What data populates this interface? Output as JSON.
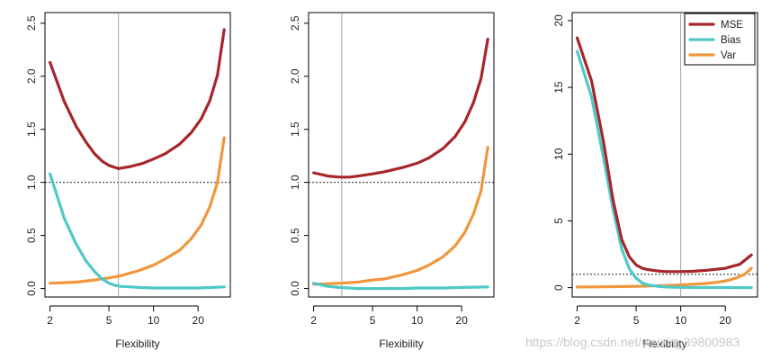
{
  "colors": {
    "mse": "#A6262B",
    "bias": "#4FC8C8",
    "var": "#F0963C",
    "reference": "#000000",
    "optimal": "#9a9a9a",
    "frame": "#000000"
  },
  "watermark": "https://blog.csdn.net/weixin_39800983",
  "chart_data": [
    {
      "type": "line",
      "xlabel": "Flexibility",
      "xscale": "log",
      "xlim": [
        1.85,
        33
      ],
      "xticks": [
        2,
        5,
        10,
        20
      ],
      "ylim": [
        -0.08,
        2.6
      ],
      "yticks": [
        0.0,
        0.5,
        1.0,
        1.5,
        2.0,
        2.5
      ],
      "ytick_labels": [
        "0.0",
        "0.5",
        "1.0",
        "1.5",
        "2.0",
        "2.5"
      ],
      "hline": 1.0,
      "vline": 5.8,
      "series": [
        {
          "key": "mse",
          "x": [
            2,
            2.5,
            3,
            3.5,
            4,
            4.5,
            5,
            5.8,
            7,
            8.5,
            10,
            12,
            15,
            18,
            21,
            24,
            27,
            30
          ],
          "y": [
            2.13,
            1.76,
            1.53,
            1.38,
            1.27,
            1.2,
            1.16,
            1.13,
            1.15,
            1.18,
            1.22,
            1.27,
            1.36,
            1.47,
            1.6,
            1.77,
            2.01,
            2.44
          ]
        },
        {
          "key": "bias",
          "x": [
            2,
            2.5,
            3,
            3.5,
            4,
            4.5,
            5,
            5.5,
            6,
            7,
            8,
            10,
            15,
            20,
            30
          ],
          "y": [
            1.08,
            0.66,
            0.42,
            0.26,
            0.16,
            0.09,
            0.05,
            0.03,
            0.02,
            0.015,
            0.01,
            0.005,
            0.005,
            0.005,
            0.015
          ]
        },
        {
          "key": "var",
          "x": [
            2,
            3,
            4,
            5,
            6,
            8,
            10,
            12,
            15,
            18,
            21,
            24,
            27,
            30
          ],
          "y": [
            0.05,
            0.06,
            0.08,
            0.1,
            0.12,
            0.17,
            0.22,
            0.28,
            0.36,
            0.47,
            0.6,
            0.77,
            1.0,
            1.42
          ]
        }
      ]
    },
    {
      "type": "line",
      "xlabel": "Flexibility",
      "xscale": "log",
      "xlim": [
        1.85,
        33
      ],
      "xticks": [
        2,
        5,
        10,
        20
      ],
      "ylim": [
        -0.08,
        2.6
      ],
      "yticks": [
        0.0,
        0.5,
        1.0,
        1.5,
        2.0,
        2.5
      ],
      "ytick_labels": [
        "0.0",
        "0.5",
        "1.0",
        "1.5",
        "2.0",
        "2.5"
      ],
      "hline": 1.0,
      "vline": 3.1,
      "series": [
        {
          "key": "mse",
          "x": [
            2,
            2.5,
            3,
            3.5,
            4,
            5,
            6,
            8,
            10,
            12,
            15,
            18,
            21,
            24,
            27,
            30
          ],
          "y": [
            1.09,
            1.06,
            1.05,
            1.05,
            1.06,
            1.08,
            1.1,
            1.14,
            1.18,
            1.23,
            1.32,
            1.43,
            1.57,
            1.75,
            1.98,
            2.35
          ]
        },
        {
          "key": "bias",
          "x": [
            2,
            2.5,
            3,
            3.5,
            4,
            5,
            6,
            8,
            10,
            15,
            20,
            30
          ],
          "y": [
            0.05,
            0.02,
            0.01,
            0.005,
            0.0,
            0.0,
            0.0,
            0.0,
            0.005,
            0.005,
            0.01,
            0.015
          ]
        },
        {
          "key": "var",
          "x": [
            2,
            3,
            4,
            5,
            6,
            8,
            10,
            12,
            15,
            18,
            21,
            24,
            27,
            30
          ],
          "y": [
            0.04,
            0.05,
            0.06,
            0.08,
            0.09,
            0.13,
            0.17,
            0.22,
            0.3,
            0.4,
            0.53,
            0.7,
            0.92,
            1.33
          ]
        }
      ]
    },
    {
      "type": "line",
      "xlabel": "Flexibility",
      "xscale": "log",
      "xlim": [
        1.85,
        33
      ],
      "xticks": [
        2,
        5,
        10,
        20
      ],
      "ylim": [
        -0.7,
        20.6
      ],
      "yticks": [
        0,
        5,
        10,
        15,
        20
      ],
      "ytick_labels": [
        "0",
        "5",
        "10",
        "15",
        "20"
      ],
      "hline": 1.0,
      "vline": 10,
      "legend": {
        "placement": "top-right",
        "entries": [
          {
            "key": "mse",
            "label": "MSE"
          },
          {
            "key": "bias",
            "label": "Bias"
          },
          {
            "key": "var",
            "label": "Var"
          }
        ]
      },
      "series": [
        {
          "key": "mse",
          "x": [
            2,
            2.5,
            3,
            3.5,
            4,
            4.5,
            5,
            5.5,
            6,
            7,
            8,
            10,
            12,
            15,
            20,
            25,
            30
          ],
          "y": [
            18.7,
            15.5,
            11.0,
            6.5,
            3.6,
            2.3,
            1.7,
            1.45,
            1.35,
            1.25,
            1.2,
            1.2,
            1.22,
            1.3,
            1.45,
            1.75,
            2.45
          ]
        },
        {
          "key": "bias",
          "x": [
            2,
            2.5,
            3,
            3.5,
            4,
            4.5,
            5,
            5.5,
            6,
            7,
            8,
            10,
            15,
            20,
            30
          ],
          "y": [
            17.7,
            14.3,
            9.8,
            5.8,
            2.9,
            1.4,
            0.7,
            0.35,
            0.2,
            0.1,
            0.05,
            0.02,
            0.01,
            0.01,
            0.0
          ]
        },
        {
          "key": "var",
          "x": [
            2,
            3,
            4,
            5,
            6,
            8,
            10,
            12,
            15,
            18,
            21,
            24,
            27,
            30
          ],
          "y": [
            0.05,
            0.06,
            0.08,
            0.1,
            0.12,
            0.16,
            0.2,
            0.25,
            0.32,
            0.42,
            0.55,
            0.75,
            1.0,
            1.45
          ]
        }
      ]
    }
  ]
}
